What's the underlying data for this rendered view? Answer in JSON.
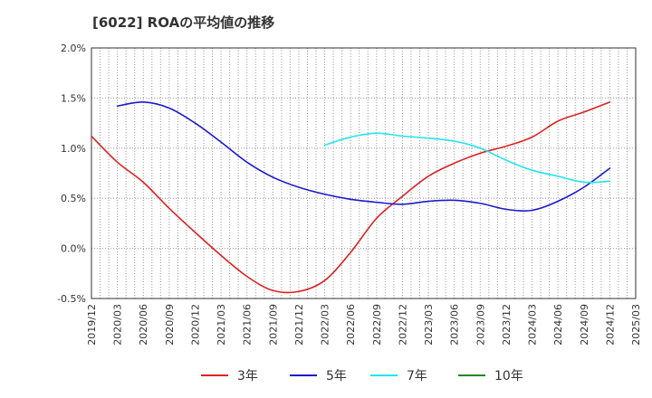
{
  "title": "[6022]  ROAの平均値の推移",
  "chart_data": {
    "type": "line",
    "title": "[6022]  ROAの平均値の推移",
    "xlabel": "",
    "ylabel": "",
    "x_ticks": [
      "2019/12",
      "2020/03",
      "2020/06",
      "2020/09",
      "2020/12",
      "2021/03",
      "2021/06",
      "2021/09",
      "2021/12",
      "2022/03",
      "2022/06",
      "2022/09",
      "2022/12",
      "2023/03",
      "2023/06",
      "2023/09",
      "2023/12",
      "2024/03",
      "2024/06",
      "2024/09",
      "2024/12",
      "2025/03"
    ],
    "y_ticks": [
      "-0.5%",
      "0.0%",
      "0.5%",
      "1.0%",
      "1.5%",
      "2.0%"
    ],
    "ylim": [
      -0.5,
      2.0
    ],
    "y_unit": "%",
    "grid": true,
    "legend_position": "bottom",
    "series": [
      {
        "name": "3年",
        "color": "#dd2222",
        "x": [
          "2019/12",
          "2020/03",
          "2020/06",
          "2020/09",
          "2020/12",
          "2021/03",
          "2021/06",
          "2021/09",
          "2021/12",
          "2022/03",
          "2022/06",
          "2022/09",
          "2022/12",
          "2023/03",
          "2023/06",
          "2023/09",
          "2023/12",
          "2024/03",
          "2024/06",
          "2024/09",
          "2024/12"
        ],
        "values": [
          1.12,
          0.86,
          0.66,
          0.4,
          0.16,
          -0.07,
          -0.28,
          -0.42,
          -0.43,
          -0.32,
          -0.04,
          0.3,
          0.52,
          0.72,
          0.85,
          0.95,
          1.02,
          1.11,
          1.27,
          1.36,
          1.46
        ]
      },
      {
        "name": "5年",
        "color": "#1a1acc",
        "x": [
          "2020/03",
          "2020/06",
          "2020/09",
          "2020/12",
          "2021/03",
          "2021/06",
          "2021/09",
          "2021/12",
          "2022/03",
          "2022/06",
          "2022/09",
          "2022/12",
          "2023/03",
          "2023/06",
          "2023/09",
          "2023/12",
          "2024/03",
          "2024/06",
          "2024/09",
          "2024/12"
        ],
        "values": [
          1.42,
          1.46,
          1.4,
          1.25,
          1.06,
          0.86,
          0.71,
          0.61,
          0.54,
          0.49,
          0.46,
          0.44,
          0.47,
          0.48,
          0.45,
          0.39,
          0.38,
          0.47,
          0.61,
          0.8
        ]
      },
      {
        "name": "7年",
        "color": "#22e5ee",
        "x": [
          "2022/03",
          "2022/06",
          "2022/09",
          "2022/12",
          "2023/03",
          "2023/06",
          "2023/09",
          "2023/12",
          "2024/03",
          "2024/06",
          "2024/09",
          "2024/12"
        ],
        "values": [
          1.03,
          1.11,
          1.15,
          1.12,
          1.1,
          1.07,
          1.0,
          0.88,
          0.78,
          0.72,
          0.66,
          0.67
        ]
      },
      {
        "name": "10年",
        "color": "#228822",
        "x": [],
        "values": []
      }
    ]
  }
}
